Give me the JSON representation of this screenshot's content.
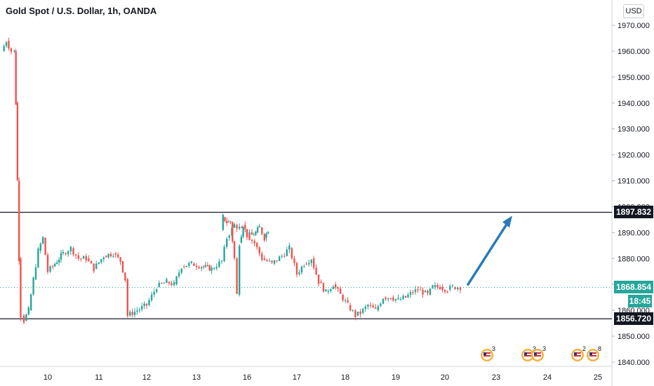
{
  "header": {
    "title": "Gold Spot / U.S. Dollar, 1h, OANDA",
    "currency": "USD"
  },
  "price_scale": {
    "last_price": "1868.854",
    "countdown": "18:45",
    "resistance": "1897.832",
    "support": "1856.720"
  },
  "colors": {
    "up": "#26a69a",
    "down": "#ef5350",
    "arrow": "#2a7ab8",
    "line": "#131722"
  },
  "events": [
    {
      "day": "22",
      "count": "3"
    },
    {
      "day": "23",
      "count": "3"
    },
    {
      "day": "23",
      "count": "3"
    },
    {
      "day": "24.9",
      "count": "2"
    },
    {
      "day": "25.4",
      "count": "8"
    }
  ],
  "chart_data": {
    "type": "candlestick",
    "title": "Gold Spot / U.S. Dollar, 1h, OANDA",
    "ylim": [
      1837,
      1975
    ],
    "yticks": [
      1840,
      1850,
      1860,
      1870,
      1880,
      1890,
      1900,
      1910,
      1920,
      1930,
      1940,
      1950,
      1960,
      1970
    ],
    "ytick_labels": [
      "1840.000",
      "1850.000",
      "1860.000",
      "1870.000",
      "1880.000",
      "1890.000",
      "1900.000",
      "1910.000",
      "1920.000",
      "1930.000",
      "1940.000",
      "1950.000",
      "1960.000",
      "1970.000"
    ],
    "xticks": [
      "10",
      "11",
      "12",
      "13",
      "16",
      "17",
      "18",
      "19",
      "20",
      "23",
      "24",
      "25"
    ],
    "horizontal_lines": [
      1897.832,
      1856.72
    ],
    "current_price": 1868.854,
    "forecast_arrow": {
      "from": [
        20.35,
        1870
      ],
      "to": [
        21.3,
        1896.5
      ]
    },
    "price_path": [
      [
        8.55,
        1960
      ],
      [
        8.7,
        1964
      ],
      [
        8.85,
        1960
      ],
      [
        8.95,
        1960
      ],
      [
        9.0,
        1940
      ],
      [
        9.05,
        1910
      ],
      [
        9.1,
        1880
      ],
      [
        9.15,
        1858
      ],
      [
        9.25,
        1856
      ],
      [
        9.4,
        1860
      ],
      [
        9.55,
        1872
      ],
      [
        9.7,
        1883
      ],
      [
        9.85,
        1888
      ],
      [
        10.0,
        1875
      ],
      [
        10.1,
        1877
      ],
      [
        10.3,
        1882
      ],
      [
        10.45,
        1884
      ],
      [
        10.6,
        1880
      ],
      [
        10.75,
        1880
      ],
      [
        10.9,
        1876
      ],
      [
        11.1,
        1881
      ],
      [
        11.3,
        1882
      ],
      [
        11.45,
        1879
      ],
      [
        11.55,
        1872
      ],
      [
        11.6,
        1858
      ],
      [
        11.8,
        1860
      ],
      [
        12.0,
        1862
      ],
      [
        12.2,
        1869
      ],
      [
        12.4,
        1871
      ],
      [
        12.55,
        1870
      ],
      [
        12.7,
        1877
      ],
      [
        12.9,
        1878
      ],
      [
        13.1,
        1877
      ],
      [
        13.3,
        1876
      ],
      [
        13.5,
        1879
      ],
      [
        13.6,
        1888
      ],
      [
        13.75,
        1893
      ],
      [
        13.9,
        1891
      ],
      [
        14.05,
        1896
      ],
      [
        14.2,
        1894
      ],
      [
        14.35,
        1894
      ],
      [
        14.5,
        1880
      ],
      [
        14.6,
        1866
      ],
      [
        14.7,
        1886
      ],
      [
        14.85,
        1893
      ],
      [
        15.0,
        1889
      ],
      [
        15.2,
        1889
      ],
      [
        15.35,
        1890
      ],
      [
        15.5,
        1892
      ],
      [
        15.7,
        1888
      ],
      [
        15.85,
        1891
      ],
      [
        16.0,
        1889
      ],
      [
        16.15,
        1886
      ],
      [
        16.3,
        1880
      ],
      [
        16.5,
        1878
      ],
      [
        16.7,
        1881
      ],
      [
        16.85,
        1884
      ],
      [
        17.0,
        1874
      ],
      [
        17.15,
        1878
      ],
      [
        17.3,
        1880
      ],
      [
        17.45,
        1871
      ],
      [
        17.6,
        1867
      ],
      [
        17.75,
        1870
      ],
      [
        17.9,
        1866
      ],
      [
        18.05,
        1862
      ],
      [
        18.2,
        1858
      ],
      [
        18.3,
        1859
      ],
      [
        18.45,
        1862
      ],
      [
        18.6,
        1860
      ],
      [
        18.75,
        1865
      ],
      [
        18.9,
        1865
      ],
      [
        19.05,
        1864
      ],
      [
        19.2,
        1865
      ],
      [
        19.35,
        1867
      ],
      [
        19.45,
        1868
      ],
      [
        19.55,
        1867
      ],
      [
        19.65,
        1866
      ],
      [
        19.75,
        1869
      ],
      [
        19.9,
        1869
      ],
      [
        20.05,
        1868
      ],
      [
        20.15,
        1869
      ],
      [
        20.3,
        1869
      ]
    ]
  }
}
